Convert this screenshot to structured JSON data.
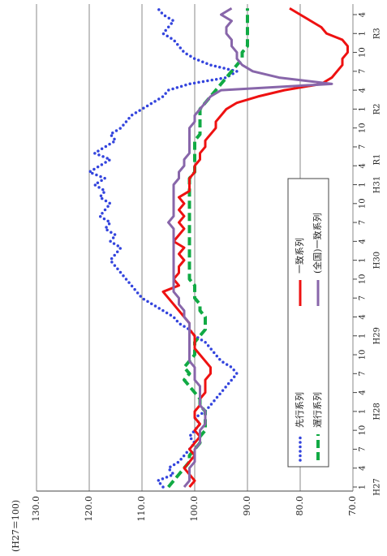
{
  "chart_data": {
    "type": "line",
    "unit_label": "(H27＝100)",
    "categories": [
      "1",
      null,
      null,
      "4",
      null,
      null,
      "7",
      null,
      null,
      "10",
      null,
      null,
      "1",
      null,
      null,
      "4",
      null,
      null,
      "7",
      null,
      null,
      "10",
      null,
      null,
      "1",
      null,
      null,
      "4",
      null,
      null,
      "7",
      null,
      null,
      "10",
      null,
      null,
      "1",
      null,
      null,
      "4",
      null,
      null,
      "7",
      null,
      null,
      "10",
      null,
      null,
      "1",
      null,
      null,
      "4",
      null,
      null,
      "7",
      null,
      null,
      "10",
      null,
      null,
      "1",
      null,
      null,
      "4",
      null,
      null,
      "7",
      null,
      null,
      "10",
      null,
      null,
      "1",
      null,
      null,
      "4",
      null
    ],
    "era_categories": [
      "H27",
      null,
      null,
      null,
      null,
      null,
      null,
      null,
      null,
      null,
      null,
      null,
      "H28",
      null,
      null,
      null,
      null,
      null,
      null,
      null,
      null,
      null,
      null,
      null,
      "H29",
      null,
      null,
      null,
      null,
      null,
      null,
      null,
      null,
      null,
      null,
      null,
      "H30",
      null,
      null,
      null,
      null,
      null,
      null,
      null,
      null,
      null,
      null,
      null,
      "H31",
      null,
      null,
      null,
      "R1",
      null,
      null,
      null,
      null,
      null,
      null,
      null,
      "R2",
      null,
      null,
      null,
      null,
      null,
      null,
      null,
      null,
      null,
      null,
      null,
      "R3",
      null,
      null,
      null,
      null
    ],
    "ylim": [
      70,
      130
    ],
    "yticks": [
      {
        "value": 70,
        "label": "70.0"
      },
      {
        "value": 80,
        "label": "80.0"
      },
      {
        "value": 90,
        "label": "90.0"
      },
      {
        "value": 100,
        "label": "100.0"
      },
      {
        "value": 110,
        "label": "110.0"
      },
      {
        "value": 120,
        "label": "120.0"
      },
      {
        "value": 130,
        "label": "130.0"
      }
    ],
    "grid": true,
    "series": [
      {
        "name": "先行系列",
        "color": "#3344dd",
        "style": "dotted",
        "values": [
          106,
          107,
          104,
          105,
          103,
          102,
          101,
          100,
          101,
          100,
          99,
          100,
          98,
          97,
          96,
          95,
          94,
          93,
          92,
          93,
          95,
          96,
          97,
          98,
          100,
          101,
          103,
          104,
          106,
          108,
          110,
          111,
          112,
          113,
          114,
          115,
          116,
          115,
          114,
          116,
          115,
          117,
          116,
          118,
          117,
          116,
          118,
          117,
          119,
          117,
          120,
          118,
          116,
          119,
          117,
          115,
          116,
          114,
          113,
          112,
          110,
          108,
          106,
          105,
          101,
          94,
          92,
          97,
          100,
          102,
          103,
          104,
          106,
          105,
          104,
          106,
          107
        ]
      },
      {
        "name": "遅行系列",
        "color": "#11aa44",
        "style": "dashed",
        "values": [
          105,
          104,
          103,
          102,
          101,
          101,
          100,
          99,
          99,
          98,
          98,
          98,
          98,
          99,
          99,
          100,
          101,
          102,
          101,
          102,
          101,
          100,
          100,
          100,
          99,
          98,
          98,
          98,
          99,
          99,
          100,
          100,
          100,
          101,
          101,
          101,
          101,
          101,
          101,
          101,
          101,
          101,
          101,
          101,
          101,
          101,
          101,
          101,
          101,
          101,
          100,
          100,
          100,
          100,
          100,
          100,
          99,
          99,
          99,
          99,
          99,
          98,
          97,
          96,
          95,
          94,
          93,
          92,
          91,
          91,
          90,
          90,
          90,
          90,
          90,
          90,
          90
        ]
      },
      {
        "name": "一致系列",
        "color": "#ee1111",
        "style": "solid",
        "values": [
          101,
          100,
          101,
          102,
          101,
          100,
          101,
          100,
          99,
          100,
          99,
          100,
          100,
          99,
          99,
          98,
          98,
          98,
          97,
          97,
          98,
          99,
          100,
          100,
          100,
          101,
          101,
          102,
          103,
          104,
          105,
          106,
          103,
          104,
          103,
          103,
          102,
          103,
          102,
          104,
          103,
          102,
          103,
          102,
          103,
          102,
          103,
          101,
          101,
          101,
          100,
          100,
          99,
          99,
          98,
          98,
          97,
          96,
          96,
          95,
          94,
          92,
          88,
          83,
          76,
          74,
          73,
          72,
          72,
          71,
          71,
          72,
          75,
          76,
          78,
          80,
          82
        ]
      },
      {
        "name": "(全国)一致系列",
        "color": "#8866aa",
        "style": "solid",
        "values": [
          102,
          101,
          101,
          101,
          100,
          100,
          100,
          99,
          99,
          99,
          98,
          98,
          98,
          99,
          99,
          99,
          99,
          100,
          100,
          100,
          101,
          101,
          101,
          101,
          101,
          101,
          101,
          102,
          102,
          103,
          103,
          104,
          104,
          104,
          104,
          104,
          104,
          104,
          104,
          104,
          104,
          104,
          105,
          104,
          104,
          104,
          104,
          104,
          104,
          103,
          103,
          102,
          102,
          101,
          101,
          101,
          101,
          101,
          100,
          100,
          99,
          98,
          97,
          95,
          74,
          84,
          89,
          91,
          92,
          92,
          93,
          93,
          94,
          94,
          93,
          95,
          93
        ]
      }
    ]
  }
}
